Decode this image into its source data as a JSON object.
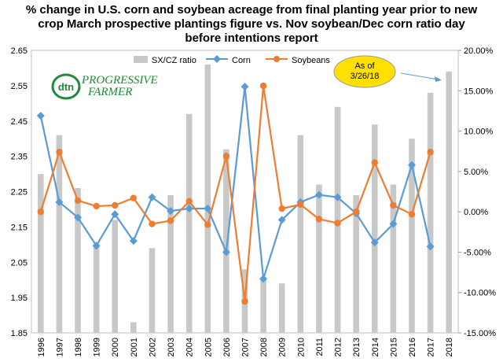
{
  "title_lines": [
    "% change in U.S. corn and soybean acreage from final planting year prior to new",
    "crop March prospective plantings figure vs. Nov soybean/Dec corn ratio day",
    "before intentions report"
  ],
  "logo": {
    "text_top": "PROGRESSIVE",
    "text_bottom": "FARMER",
    "mark": "dtn"
  },
  "callout": {
    "line1": "As of",
    "line2": "3/26/18"
  },
  "colors": {
    "ratio": "#c8c8c8",
    "corn": "#5b9bd5",
    "soybeans": "#ed7d31",
    "callout_fill": "#ffe000",
    "callout_stroke": "#999999"
  },
  "chart_data": {
    "type": "bar+line",
    "categories": [
      "1996",
      "1997",
      "1998",
      "1999",
      "2000",
      "2001",
      "2002",
      "2003",
      "2004",
      "2005",
      "2006",
      "2007",
      "2008",
      "2009",
      "2010",
      "2011",
      "2012",
      "2013",
      "2014",
      "2015",
      "2016",
      "2017",
      "2018"
    ],
    "left_axis": {
      "min": 1.85,
      "max": 2.65,
      "ticks": [
        "1.85",
        "1.95",
        "2.05",
        "2.15",
        "2.25",
        "2.35",
        "2.45",
        "2.55",
        "2.65"
      ]
    },
    "right_axis": {
      "min": -15,
      "max": 20,
      "ticks": [
        "-15.00%",
        "-10.00%",
        "-5.00%",
        "0.00%",
        "5.00%",
        "10.00%",
        "15.00%",
        "20.00%"
      ]
    },
    "legend": {
      "ratio": "SX/CZ ratio",
      "corn": "Corn",
      "soybeans": "Soybeans",
      "placement": "top"
    },
    "series": [
      {
        "name": "SX/CZ ratio",
        "axis": "left",
        "type": "bar",
        "values": [
          2.3,
          2.41,
          2.26,
          2.1,
          2.17,
          1.88,
          2.09,
          2.24,
          2.47,
          2.61,
          2.37,
          2.03,
          2.0,
          1.99,
          2.41,
          2.27,
          2.49,
          2.24,
          2.44,
          2.27,
          2.4,
          2.53,
          2.59
        ]
      },
      {
        "name": "Corn",
        "axis": "right",
        "type": "line",
        "values": [
          11.9,
          1.2,
          -0.7,
          -4.2,
          -0.3,
          -3.6,
          1.8,
          0.1,
          0.4,
          0.4,
          -5.0,
          15.5,
          -8.3,
          -1.0,
          1.2,
          2.1,
          1.8,
          -0.2,
          -3.8,
          -1.5,
          5.8,
          -4.3,
          null
        ]
      },
      {
        "name": "Soybeans",
        "axis": "right",
        "type": "line",
        "values": [
          0.0,
          7.4,
          1.4,
          0.7,
          0.8,
          1.7,
          -1.5,
          -1.1,
          1.3,
          -1.6,
          6.9,
          -11.1,
          15.6,
          0.4,
          0.9,
          -0.9,
          -1.4,
          0.0,
          6.1,
          0.8,
          -0.3,
          7.4,
          null
        ]
      }
    ]
  }
}
